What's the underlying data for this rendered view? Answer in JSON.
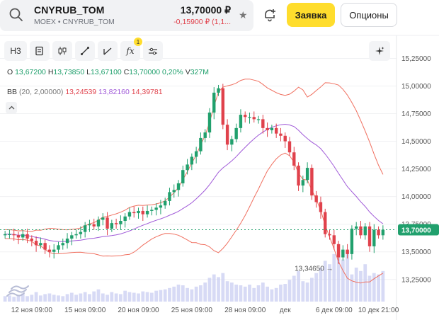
{
  "header": {
    "ticker": "CNYRUB_TOM",
    "exchange": "MOEX • CNYRUB_TOM",
    "price": "13,70000 ₽",
    "change": "-0,15900 ₽ (1,1...",
    "order_label": "Заявка",
    "options_label": "Опционы"
  },
  "toolbar": {
    "interval": "Н3",
    "indicator_badge": "1"
  },
  "legend": {
    "o_key": "O",
    "o_val": "13,67200",
    "h_key": "H",
    "h_val": "13,73850",
    "l_key": "L",
    "l_val": "13,67100",
    "c_key": "C",
    "c_val": "13,70000",
    "chg": "0,20%",
    "vol_key": "V",
    "vol_val": "327M",
    "bb_name": "BB",
    "bb_params": "(20, 2,00000)",
    "bb_lower": "13,24539",
    "bb_mid": "13,82160",
    "bb_upper": "14,39781"
  },
  "colors": {
    "up": "#21a06d",
    "down": "#e0424c",
    "bb_band": "#f07060",
    "bb_mid": "#a05ad8",
    "volume": "#c9cdf2",
    "price_tag": "#21a06d"
  },
  "chart_data": {
    "type": "candlestick",
    "y_ticks": [
      "15,25000",
      "15,00000",
      "14,75000",
      "14,50000",
      "14,25000",
      "14,00000",
      "13,75000",
      "13,50000",
      "13,25000"
    ],
    "y_tick_values": [
      15.25,
      15.0,
      14.75,
      14.5,
      14.25,
      14.0,
      13.75,
      13.5,
      13.25
    ],
    "x_ticks": [
      "12 ноя 09:00",
      "15 ноя 09:00",
      "20 ноя 09:00",
      "25 ноя 09:00",
      "28 ноя 09:00",
      "дек",
      "6 дек 09:00",
      "10 дек 21:00"
    ],
    "last_price": "13,70000",
    "last_price_value": 13.7,
    "min_marker": "13,34650",
    "min_value": 13.3465,
    "ylim": [
      13.05,
      15.33
    ],
    "close": [
      13.66,
      13.66,
      13.65,
      13.63,
      13.66,
      13.62,
      13.6,
      13.56,
      13.58,
      13.52,
      13.5,
      13.52,
      13.56,
      13.58,
      13.62,
      13.65,
      13.66,
      13.68,
      13.74,
      13.75,
      13.73,
      13.79,
      13.81,
      13.71,
      13.76,
      13.75,
      13.78,
      13.82,
      13.86,
      13.85,
      13.87,
      13.84,
      13.87,
      13.88,
      13.9,
      13.92,
      13.96,
      14.04,
      14.06,
      14.12,
      14.24,
      14.29,
      14.36,
      14.41,
      14.53,
      14.58,
      14.76,
      14.94,
      14.98,
      14.65,
      14.47,
      14.52,
      14.62,
      14.74,
      14.72,
      14.72,
      14.7,
      14.7,
      14.62,
      14.6,
      14.62,
      14.57,
      14.55,
      14.5,
      14.4,
      14.28,
      14.1,
      14.15,
      14.26,
      14.01,
      13.95,
      13.86,
      13.66,
      13.65,
      13.57,
      13.45,
      13.52,
      13.48,
      13.71,
      13.73,
      13.65,
      13.73,
      13.55,
      13.7,
      13.65,
      13.7
    ],
    "volume": [
      8,
      9,
      7,
      10,
      12,
      8,
      10,
      14,
      9,
      11,
      12,
      10,
      9,
      8,
      11,
      13,
      10,
      12,
      14,
      11,
      15,
      18,
      12,
      10,
      14,
      12,
      11,
      16,
      14,
      13,
      12,
      15,
      14,
      13,
      16,
      17,
      18,
      20,
      22,
      25,
      24,
      20,
      18,
      22,
      24,
      28,
      35,
      40,
      36,
      42,
      30,
      28,
      25,
      24,
      22,
      25,
      20,
      24,
      28,
      22,
      18,
      20,
      25,
      26,
      32,
      38,
      45,
      30,
      28,
      35,
      42,
      50,
      60,
      55,
      70,
      68,
      62,
      75,
      40,
      50,
      45,
      55,
      38,
      42,
      40,
      45
    ]
  }
}
